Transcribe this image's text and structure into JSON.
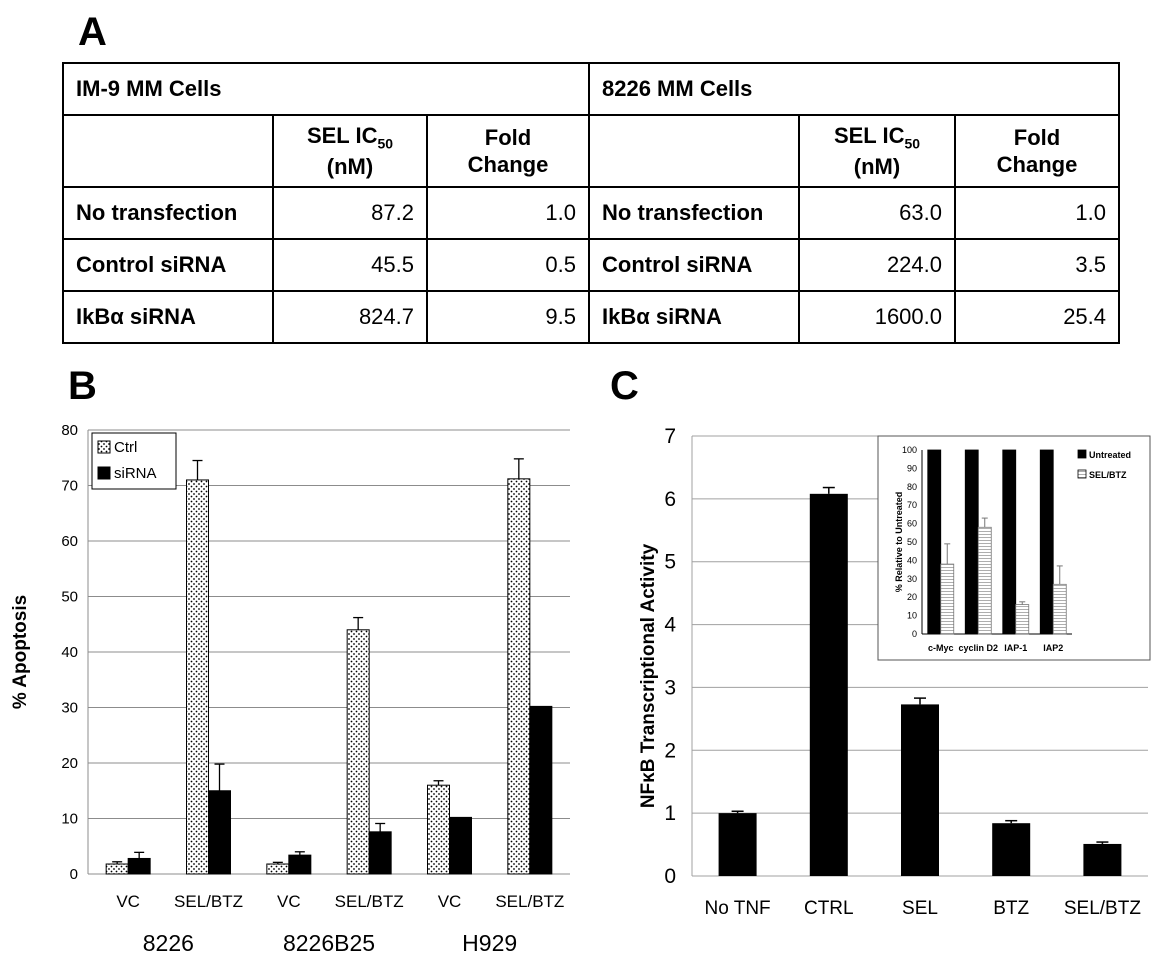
{
  "panels": {
    "a": "A",
    "b": "B",
    "c": "C"
  },
  "table": {
    "group_left": "IM-9 MM Cells",
    "group_right": "8226 MM Cells",
    "col_ic50_main": "SEL IC",
    "col_ic50_sub": "50",
    "col_ic50_unit": "(nM)",
    "col_fold_line1": "Fold",
    "col_fold_line2": "Change",
    "rows": [
      {
        "label": "No transfection",
        "im9_ic50": "87.2",
        "im9_fold": "1.0",
        "label_r": "No transfection",
        "r8226_ic50": "63.0",
        "r8226_fold": "1.0"
      },
      {
        "label": "Control siRNA",
        "im9_ic50": "45.5",
        "im9_fold": "0.5",
        "label_r": "Control siRNA",
        "r8226_ic50": "224.0",
        "r8226_fold": "3.5"
      },
      {
        "label": "IkBα siRNA",
        "im9_ic50": "824.7",
        "im9_fold": "9.5",
        "label_r": "IkBα siRNA",
        "r8226_ic50": "1600.0",
        "r8226_fold": "25.4"
      }
    ]
  },
  "chart_data": [
    {
      "type": "bar",
      "panel": "B",
      "ylabel": "% Apoptosis",
      "ylim": [
        0,
        80
      ],
      "yticks": [
        0,
        10,
        20,
        30,
        40,
        50,
        60,
        70,
        80
      ],
      "grid": true,
      "legend_position": "top-left",
      "categories": [
        "VC",
        "SEL/BTZ",
        "VC",
        "SEL/BTZ",
        "VC",
        "SEL/BTZ"
      ],
      "groups": [
        "8226",
        "8226B25",
        "H929"
      ],
      "series": [
        {
          "name": "Ctrl",
          "pattern": "dotted",
          "values": [
            1.8,
            71,
            1.8,
            44,
            16,
            71.2
          ],
          "errors": [
            0.4,
            3.5,
            0.3,
            2.2,
            0.8,
            3.6
          ]
        },
        {
          "name": "siRNA",
          "pattern": "solid",
          "values": [
            2.8,
            15,
            3.4,
            7.6,
            10.2,
            30.2
          ],
          "errors": [
            1.1,
            4.8,
            0.6,
            1.5,
            0,
            0
          ]
        }
      ]
    },
    {
      "type": "bar",
      "panel": "C",
      "ylabel": "NFκB Transcriptional Activity",
      "ylim": [
        0,
        7
      ],
      "yticks": [
        0,
        1,
        2,
        3,
        4,
        5,
        6,
        7
      ],
      "grid": true,
      "categories": [
        "No TNF",
        "CTRL",
        "SEL",
        "BTZ",
        "SEL/BTZ"
      ],
      "values": [
        1.0,
        6.08,
        2.73,
        0.84,
        0.51
      ],
      "errors": [
        0.03,
        0.1,
        0.1,
        0.04,
        0.03
      ]
    },
    {
      "type": "bar",
      "panel": "C-inset",
      "ylabel": "% Relative to Untreated",
      "ylim": [
        0,
        100
      ],
      "yticks": [
        0,
        10,
        20,
        30,
        40,
        50,
        60,
        70,
        80,
        90,
        100
      ],
      "grid": false,
      "legend_position": "right",
      "categories": [
        "c-Myc",
        "cyclin D2",
        "IAP-1",
        "IAP2"
      ],
      "series": [
        {
          "name": "Untreated",
          "pattern": "solid",
          "values": [
            100,
            100,
            100,
            100
          ],
          "errors": [
            0,
            0,
            0,
            0
          ]
        },
        {
          "name": "SEL/BTZ",
          "pattern": "lined",
          "values": [
            38,
            58,
            16,
            27
          ],
          "errors": [
            11,
            5,
            1.5,
            10
          ]
        }
      ]
    }
  ]
}
